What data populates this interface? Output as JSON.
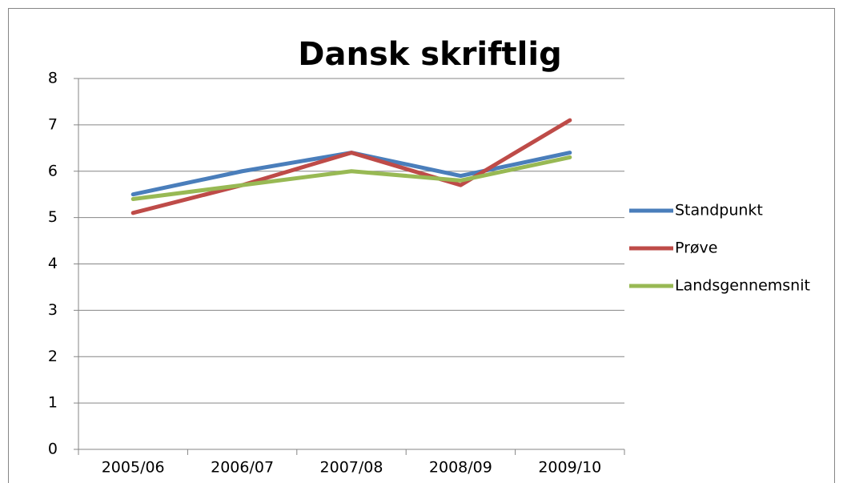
{
  "chart_data": {
    "type": "line",
    "title": "Dansk skriftlig",
    "categories": [
      "2005/06",
      "2006/07",
      "2007/08",
      "2008/09",
      "2009/10"
    ],
    "series": [
      {
        "name": "Standpunkt",
        "color": "#4a7ebb",
        "values": [
          5.5,
          6.0,
          6.4,
          5.9,
          6.4
        ]
      },
      {
        "name": "Prøve",
        "color": "#be4b48",
        "values": [
          5.1,
          5.7,
          6.4,
          5.7,
          7.1
        ]
      },
      {
        "name": "Landsgennemsnit",
        "color": "#98b954",
        "values": [
          5.4,
          5.7,
          6.0,
          5.8,
          6.3
        ]
      }
    ],
    "ylim": [
      0,
      8
    ],
    "yticks": [
      0,
      1,
      2,
      3,
      4,
      5,
      6,
      7,
      8
    ],
    "grid": true,
    "legend": "right"
  }
}
